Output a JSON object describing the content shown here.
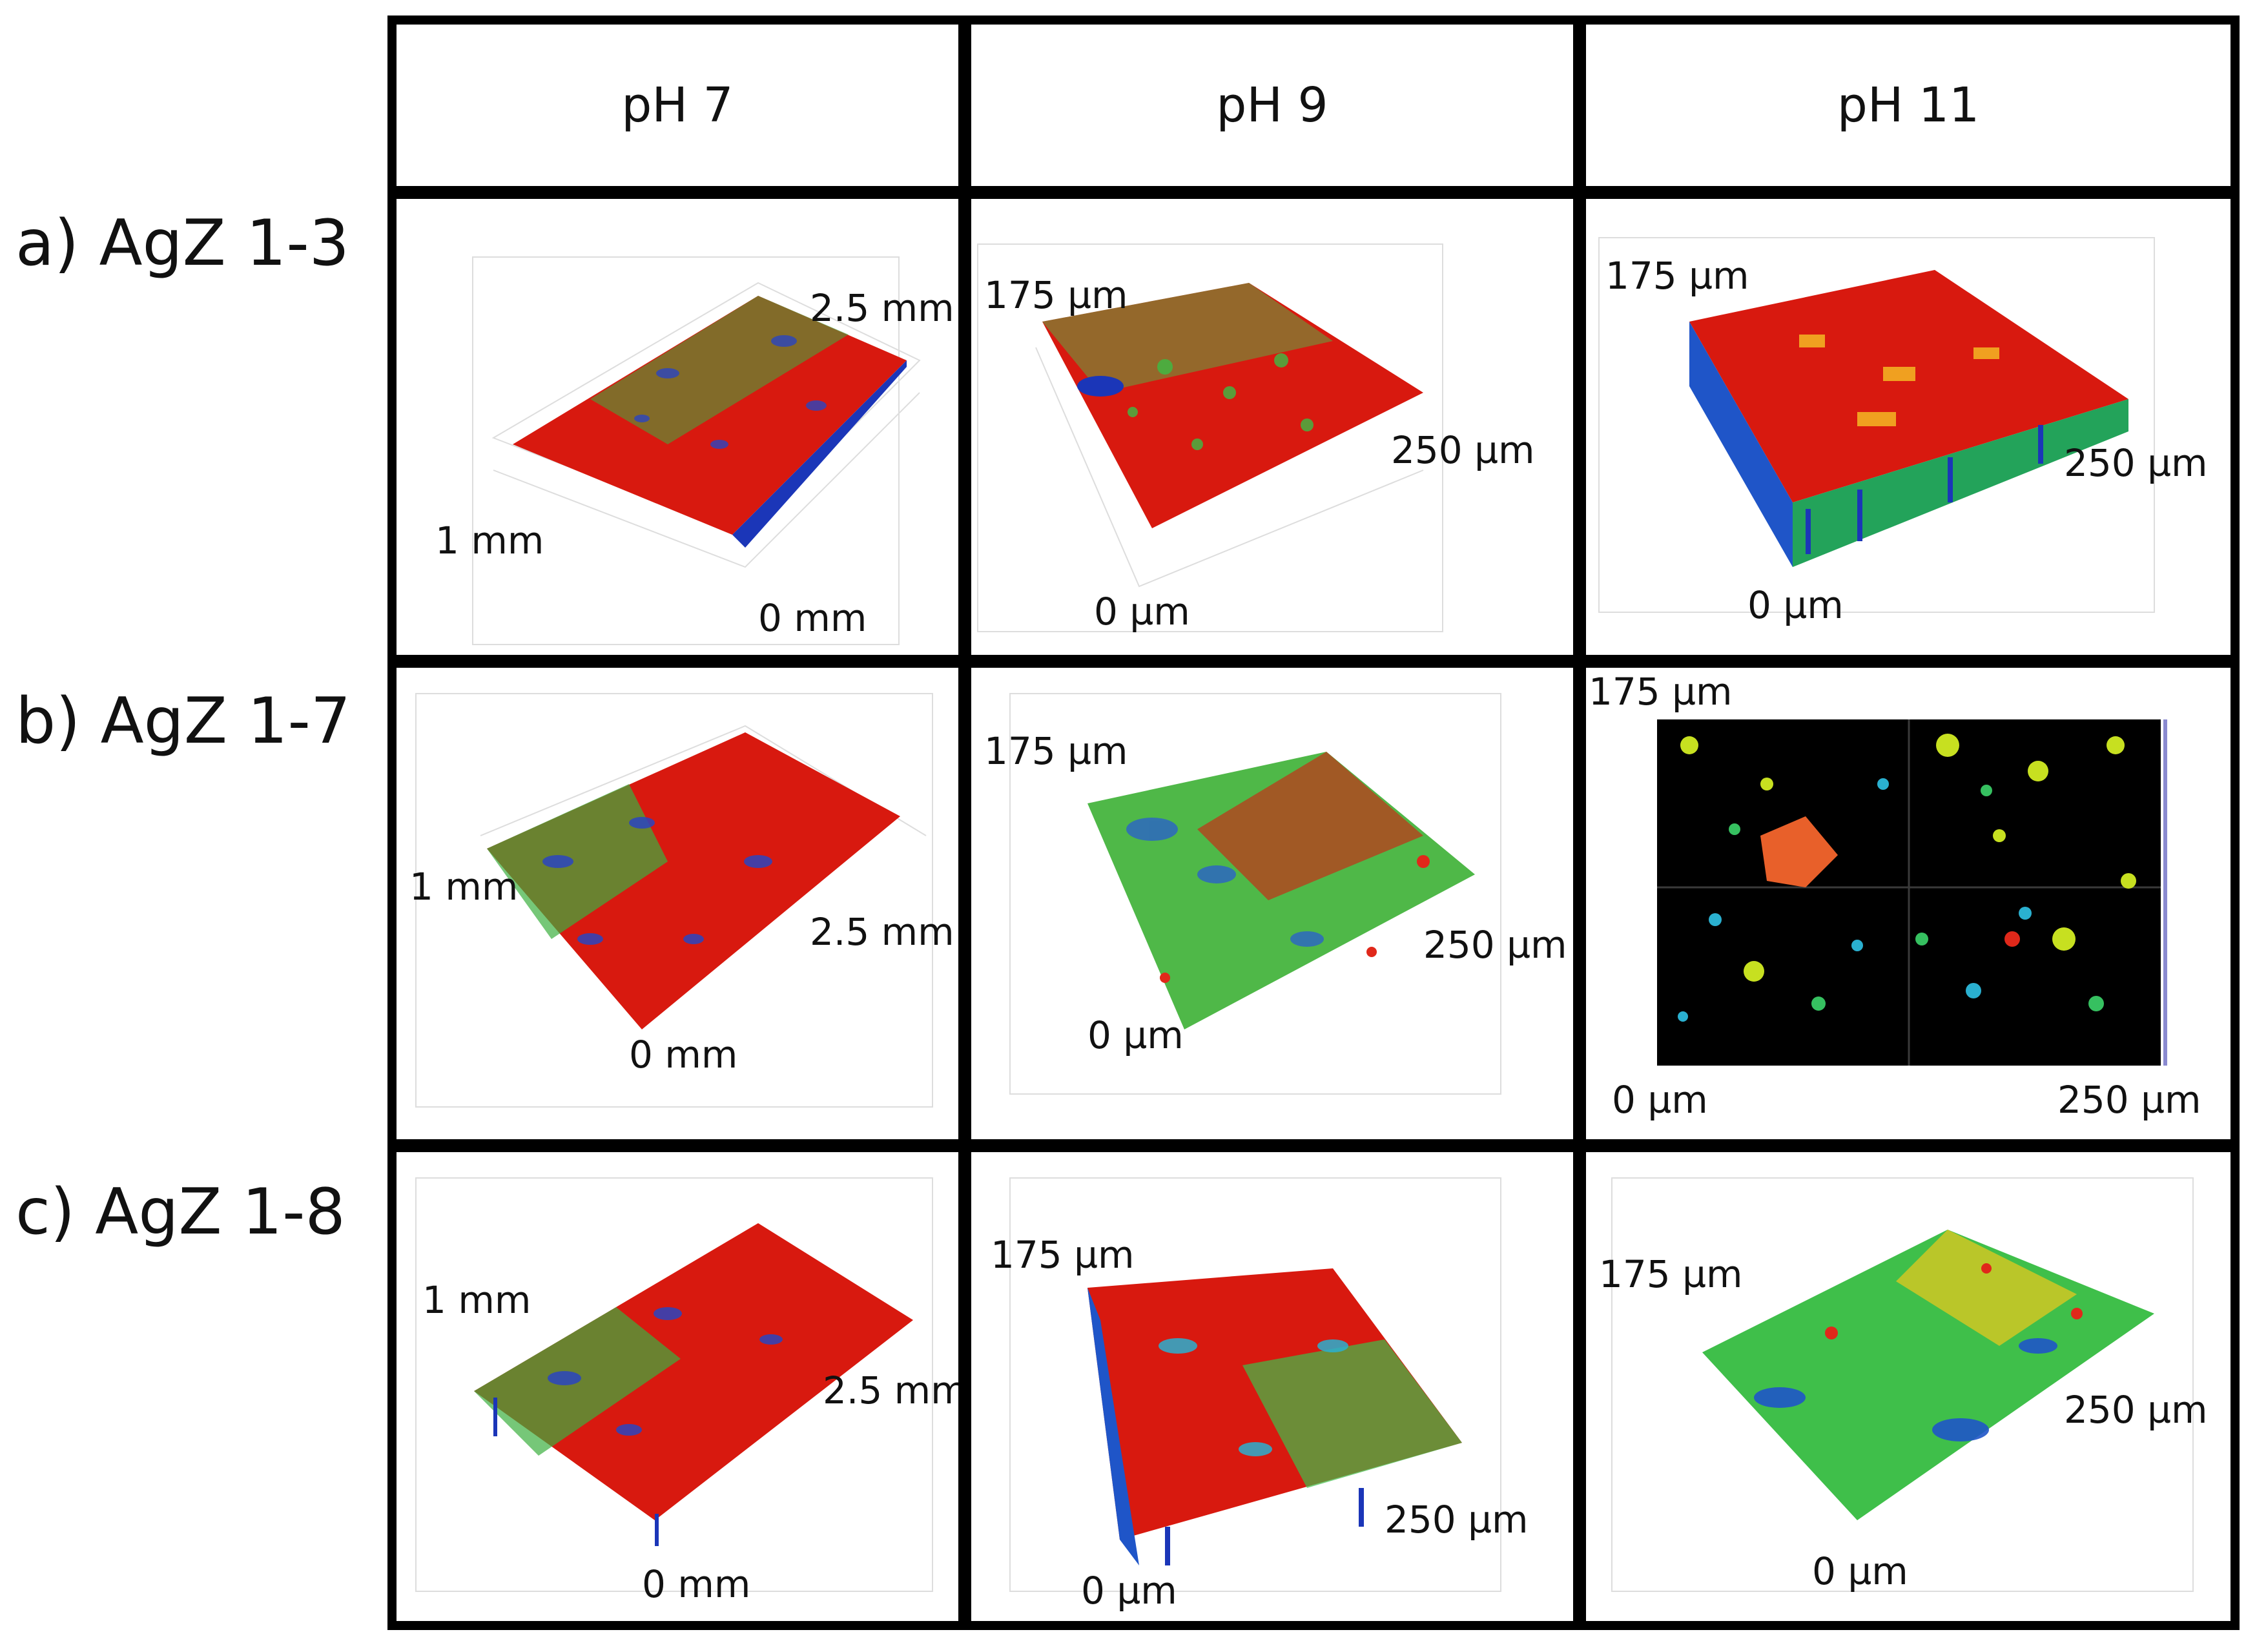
{
  "columns": [
    "pH 7",
    "pH 9",
    "pH 11"
  ],
  "rows": [
    "a) AgZ 1-3",
    "b) AgZ 1-7",
    "c) AgZ 1-8"
  ],
  "panels": {
    "a_ph7": {
      "back": "2.5 mm",
      "side": "1 mm",
      "origin": "0 mm"
    },
    "a_ph9": {
      "top": "175 µm",
      "side": "250 µm",
      "origin": "0 µm"
    },
    "a_ph11": {
      "top": "175 µm",
      "side": "250 µm",
      "origin": "0 µm"
    },
    "b_ph7": {
      "left": "1 mm",
      "side": "2.5 mm",
      "origin": "0 mm"
    },
    "b_ph9": {
      "top": "175 µm",
      "side": "250 µm",
      "origin": "0 µm"
    },
    "b_ph11": {
      "top": "175 µm",
      "origin": "0 µm",
      "right": "250 µm"
    },
    "c_ph7": {
      "left": "1 mm",
      "side": "2.5 mm",
      "origin": "0 mm"
    },
    "c_ph9": {
      "top": "175 µm",
      "side": "250 µm",
      "origin": "0 µm"
    },
    "c_ph11": {
      "top": "175 µm",
      "side": "250 µm",
      "origin": "0 µm"
    }
  },
  "colors": {
    "high": "#e01e0c",
    "mid": "#3fbf4a",
    "low": "#1430c8",
    "map_bg": "#000000"
  }
}
